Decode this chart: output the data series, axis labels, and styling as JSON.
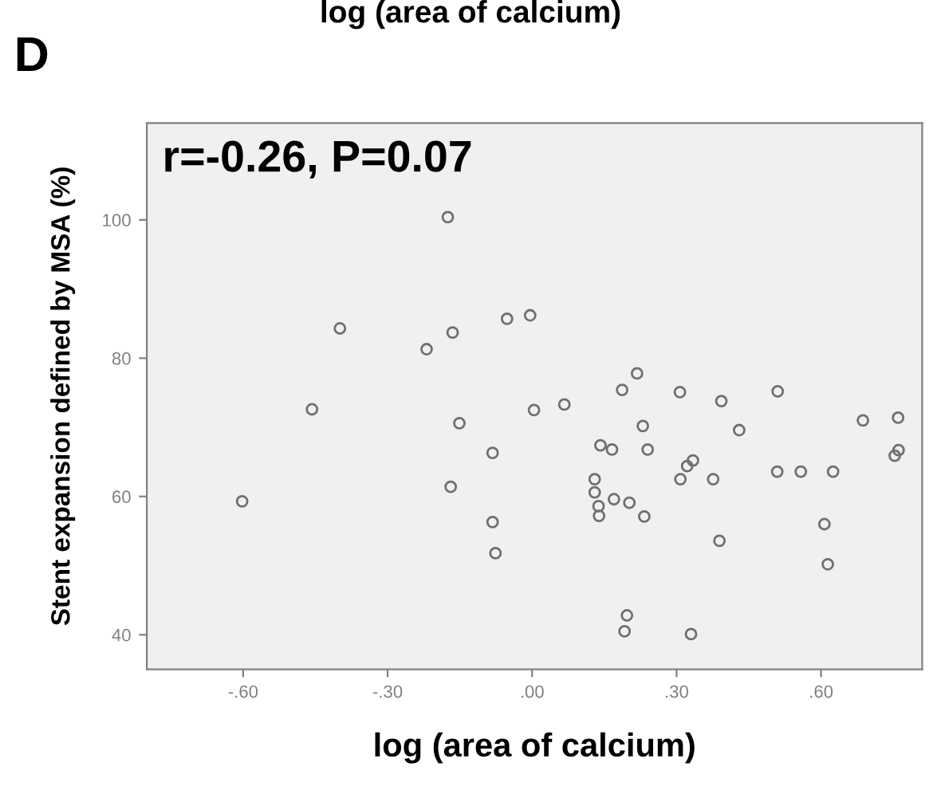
{
  "chart_data": {
    "type": "scatter",
    "xlabel": "log (area of calcium)",
    "ylabel": "Stent expansion defined by MSA (%)",
    "annotations": [
      "log (area of calcium)",
      "D",
      "r=-0.26, P=0.07"
    ],
    "marker": "circle",
    "grid": false,
    "xlim": [
      -0.8,
      0.81
    ],
    "ylim": [
      35,
      114
    ],
    "xticks": [
      {
        "value": -0.6,
        "label": "-.60"
      },
      {
        "value": -0.3,
        "label": "-.30"
      },
      {
        "value": 0,
        "label": ".00"
      },
      {
        "value": 0.3,
        "label": ".30"
      },
      {
        "value": 0.6,
        "label": ".60"
      }
    ],
    "yticks": [
      40,
      60,
      80,
      100
    ],
    "series": [
      {
        "color": "#707070",
        "x": [
          -0.175,
          -0.399,
          -0.052,
          -0.004,
          -0.165,
          -0.219,
          -0.457,
          -0.151,
          0.004,
          -0.082,
          -0.169,
          0.067,
          0.218,
          0.187,
          0.307,
          0.51,
          0.393,
          0.23,
          0.43,
          0.687,
          0.76,
          0.142,
          0.166,
          0.24,
          0.334,
          0.322,
          0.761,
          0.753,
          0.13,
          0.308,
          0.376,
          0.509,
          0.558,
          0.625,
          0.13,
          0.138,
          0.139,
          0.17,
          0.202,
          0.233,
          0.389,
          0.607,
          0.614,
          0.197,
          0.192,
          0.33,
          -0.602,
          -0.082,
          -0.076
        ],
        "values": [
          100.4,
          84.3,
          85.7,
          86.2,
          83.7,
          81.3,
          72.6,
          70.6,
          72.5,
          66.3,
          61.4,
          73.3,
          77.8,
          75.4,
          75.1,
          75.2,
          73.8,
          70.2,
          69.6,
          71.0,
          71.4,
          67.4,
          66.8,
          66.8,
          65.2,
          64.4,
          66.7,
          65.9,
          62.5,
          62.5,
          62.5,
          63.6,
          63.6,
          63.6,
          60.6,
          58.6,
          57.2,
          59.6,
          59.1,
          57.1,
          53.6,
          56.0,
          50.2,
          42.8,
          40.5,
          40.1,
          59.3,
          56.3,
          51.8
        ]
      }
    ]
  }
}
